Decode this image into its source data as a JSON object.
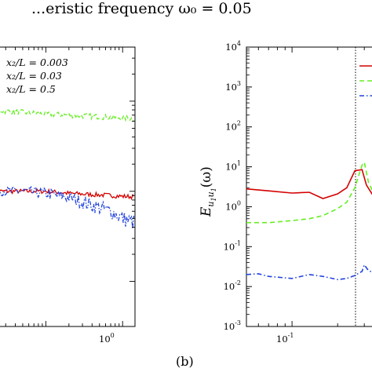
{
  "header": {
    "text_fragment": "...eristic frequency ω₀ = 0.05"
  },
  "caption_b": "(b)",
  "chart_data": [
    {
      "panel": "a",
      "type": "line",
      "xscale": "log",
      "yscale": "log",
      "grid": false,
      "legend_placement": "top-left",
      "x_tick_labels": [
        "10^0"
      ],
      "series": [
        {
          "name": "x₂/L = 0.003",
          "color": "#d40000",
          "style": "solid",
          "x": [
            0.02,
            0.05,
            0.1,
            0.2,
            0.4,
            0.7,
            1.0,
            1.4
          ],
          "values": [
            1.0,
            1.0,
            1.0,
            0.95,
            0.92,
            0.9,
            0.88,
            0.87
          ]
        },
        {
          "name": "x₂/L = 0.03",
          "color": "#66ee22",
          "style": "dashed",
          "x": [
            0.02,
            0.05,
            0.1,
            0.2,
            0.4,
            0.7,
            1.0,
            1.4
          ],
          "values": [
            8.0,
            7.5,
            7.2,
            7.0,
            6.8,
            6.6,
            6.5,
            6.4
          ]
        },
        {
          "name": "x₂/L = 0.5",
          "color": "#2244dd",
          "style": "dash-dot",
          "x": [
            0.02,
            0.05,
            0.1,
            0.2,
            0.4,
            0.7,
            1.0,
            1.4
          ],
          "values": [
            1.0,
            1.0,
            0.95,
            0.85,
            0.7,
            0.6,
            0.5,
            0.45
          ]
        }
      ]
    },
    {
      "panel": "b",
      "type": "line",
      "xscale": "log",
      "yscale": "log",
      "ylabel": "E_{u1u1}(ω)",
      "ylim": [
        0.001,
        10000
      ],
      "grid": false,
      "legend_placement": "top-right",
      "x_tick_labels": [
        "10^-1"
      ],
      "y_tick_labels": [
        "10^4",
        "10^3",
        "10^2",
        "10^1",
        "10^0",
        "10^-1",
        "10^-2",
        "10^-3"
      ],
      "vertical_marker_x": 0.3,
      "series": [
        {
          "name": "",
          "color": "#d40000",
          "style": "solid",
          "x": [
            0.05,
            0.07,
            0.1,
            0.13,
            0.16,
            0.2,
            0.23,
            0.26,
            0.29,
            0.31,
            0.34,
            0.38
          ],
          "values": [
            2.8,
            2.5,
            2.2,
            2.3,
            1.6,
            2.1,
            3.0,
            8.0,
            8.5,
            3.5,
            2.0,
            2.2
          ]
        },
        {
          "name": "",
          "color": "#66ee22",
          "style": "dashed",
          "x": [
            0.05,
            0.07,
            0.1,
            0.13,
            0.16,
            0.2,
            0.23,
            0.26,
            0.29,
            0.3,
            0.32,
            0.35,
            0.38
          ],
          "values": [
            0.4,
            0.4,
            0.45,
            0.5,
            0.6,
            0.9,
            1.3,
            3.0,
            11.0,
            13.0,
            4.0,
            2.0,
            1.5
          ]
        },
        {
          "name": "",
          "color": "#2244dd",
          "style": "dash-dot",
          "x": [
            0.05,
            0.06,
            0.07,
            0.1,
            0.13,
            0.16,
            0.2,
            0.23,
            0.26,
            0.29,
            0.3,
            0.32,
            0.35,
            0.38
          ],
          "values": [
            0.02,
            0.021,
            0.018,
            0.016,
            0.02,
            0.018,
            0.015,
            0.016,
            0.019,
            0.024,
            0.035,
            0.025,
            0.022,
            0.022
          ]
        }
      ]
    }
  ]
}
